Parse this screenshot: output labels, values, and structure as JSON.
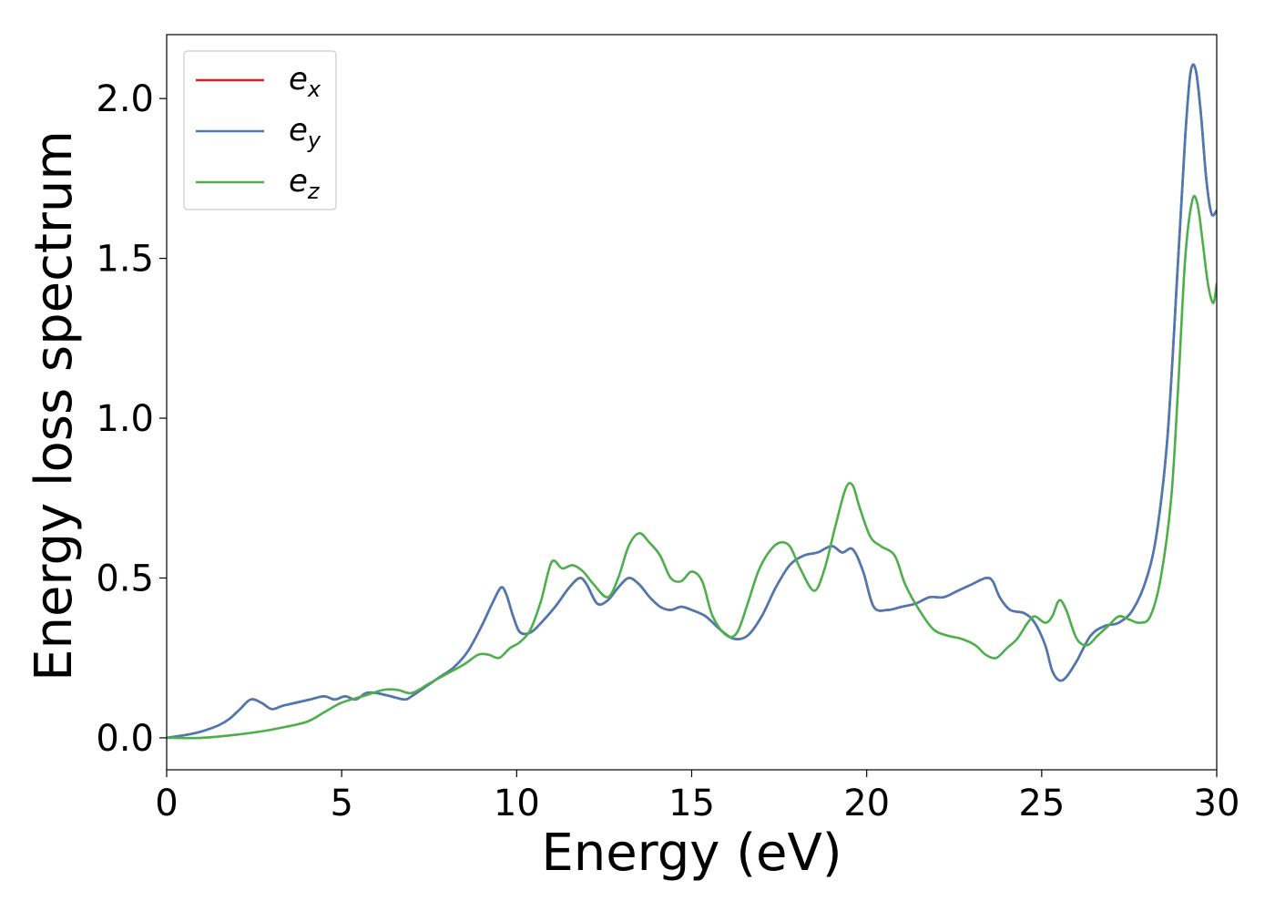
{
  "chart_data": {
    "type": "line",
    "xlabel": "Energy (eV)",
    "ylabel": "Energy loss spectrum",
    "xlim": [
      0,
      30
    ],
    "ylim": [
      -0.1,
      2.2
    ],
    "xticks": [
      0,
      5,
      10,
      15,
      20,
      25,
      30
    ],
    "xtick_labels": [
      "0",
      "5",
      "10",
      "15",
      "20",
      "25",
      "30"
    ],
    "yticks": [
      0.0,
      0.5,
      1.0,
      1.5,
      2.0
    ],
    "ytick_labels": [
      "0.0",
      "0.5",
      "1.0",
      "1.5",
      "2.0"
    ],
    "grid": false,
    "legend_position": "top-left",
    "series": [
      {
        "name": "e_x",
        "label_base": "e",
        "label_sub": "x",
        "color": "#e41a1c",
        "x": [
          0,
          0.6,
          1,
          1.5,
          1.8,
          2.1,
          2.4,
          2.7,
          3.0,
          3.3,
          3.7,
          4.1,
          4.5,
          4.8,
          5.1,
          5.4,
          5.7,
          6.0,
          6.4,
          6.8,
          7.0,
          7.4,
          7.8,
          8.2,
          8.6,
          9.0,
          9.3,
          9.55,
          9.7,
          9.9,
          10.1,
          10.4,
          10.7,
          11.1,
          11.5,
          11.8,
          12.0,
          12.3,
          12.6,
          12.9,
          13.2,
          13.5,
          13.8,
          14.1,
          14.4,
          14.7,
          15.0,
          15.4,
          15.8,
          16.2,
          16.6,
          17.0,
          17.4,
          17.8,
          18.2,
          18.6,
          19.0,
          19.3,
          19.6,
          19.9,
          20.2,
          20.6,
          21.0,
          21.4,
          21.8,
          22.2,
          22.6,
          23.0,
          23.4,
          23.6,
          23.8,
          24.1,
          24.5,
          24.8,
          25.1,
          25.3,
          25.5,
          25.7,
          26.0,
          26.4,
          26.8,
          27.2,
          27.6,
          28.0,
          28.3,
          28.6,
          28.9,
          29.1,
          29.25,
          29.4,
          29.55,
          29.7,
          29.85,
          30.0
        ],
        "y": [
          0,
          0.01,
          0.02,
          0.04,
          0.06,
          0.09,
          0.12,
          0.11,
          0.09,
          0.1,
          0.11,
          0.12,
          0.13,
          0.12,
          0.13,
          0.12,
          0.14,
          0.14,
          0.13,
          0.12,
          0.13,
          0.16,
          0.19,
          0.22,
          0.27,
          0.35,
          0.42,
          0.47,
          0.45,
          0.38,
          0.33,
          0.33,
          0.36,
          0.41,
          0.47,
          0.5,
          0.48,
          0.42,
          0.43,
          0.47,
          0.5,
          0.48,
          0.44,
          0.41,
          0.4,
          0.41,
          0.4,
          0.38,
          0.34,
          0.31,
          0.32,
          0.38,
          0.47,
          0.54,
          0.57,
          0.58,
          0.6,
          0.58,
          0.59,
          0.52,
          0.41,
          0.4,
          0.41,
          0.42,
          0.44,
          0.44,
          0.46,
          0.48,
          0.5,
          0.49,
          0.44,
          0.4,
          0.39,
          0.36,
          0.29,
          0.21,
          0.18,
          0.19,
          0.24,
          0.32,
          0.35,
          0.36,
          0.4,
          0.5,
          0.65,
          0.95,
          1.5,
          1.88,
          2.08,
          2.09,
          1.95,
          1.75,
          1.64,
          1.65
        ]
      },
      {
        "name": "e_y",
        "label_base": "e",
        "label_sub": "y",
        "color": "#4a7ab5",
        "x": [
          0,
          0.6,
          1,
          1.5,
          1.8,
          2.1,
          2.4,
          2.7,
          3.0,
          3.3,
          3.7,
          4.1,
          4.5,
          4.8,
          5.1,
          5.4,
          5.7,
          6.0,
          6.4,
          6.8,
          7.0,
          7.4,
          7.8,
          8.2,
          8.6,
          9.0,
          9.3,
          9.55,
          9.7,
          9.9,
          10.1,
          10.4,
          10.7,
          11.1,
          11.5,
          11.8,
          12.0,
          12.3,
          12.6,
          12.9,
          13.2,
          13.5,
          13.8,
          14.1,
          14.4,
          14.7,
          15.0,
          15.4,
          15.8,
          16.2,
          16.6,
          17.0,
          17.4,
          17.8,
          18.2,
          18.6,
          19.0,
          19.3,
          19.6,
          19.9,
          20.2,
          20.6,
          21.0,
          21.4,
          21.8,
          22.2,
          22.6,
          23.0,
          23.4,
          23.6,
          23.8,
          24.1,
          24.5,
          24.8,
          25.1,
          25.3,
          25.5,
          25.7,
          26.0,
          26.4,
          26.8,
          27.2,
          27.6,
          28.0,
          28.3,
          28.6,
          28.9,
          29.1,
          29.25,
          29.4,
          29.55,
          29.7,
          29.85,
          30.0
        ],
        "y": [
          0,
          0.01,
          0.02,
          0.04,
          0.06,
          0.09,
          0.12,
          0.11,
          0.09,
          0.1,
          0.11,
          0.12,
          0.13,
          0.12,
          0.13,
          0.12,
          0.14,
          0.14,
          0.13,
          0.12,
          0.13,
          0.16,
          0.19,
          0.22,
          0.27,
          0.35,
          0.42,
          0.47,
          0.45,
          0.38,
          0.33,
          0.33,
          0.36,
          0.41,
          0.47,
          0.5,
          0.48,
          0.42,
          0.43,
          0.47,
          0.5,
          0.48,
          0.44,
          0.41,
          0.4,
          0.41,
          0.4,
          0.38,
          0.34,
          0.31,
          0.32,
          0.38,
          0.47,
          0.54,
          0.57,
          0.58,
          0.6,
          0.58,
          0.59,
          0.52,
          0.41,
          0.4,
          0.41,
          0.42,
          0.44,
          0.44,
          0.46,
          0.48,
          0.5,
          0.49,
          0.44,
          0.4,
          0.39,
          0.36,
          0.29,
          0.21,
          0.18,
          0.19,
          0.24,
          0.32,
          0.35,
          0.36,
          0.4,
          0.5,
          0.65,
          0.95,
          1.5,
          1.88,
          2.08,
          2.09,
          1.95,
          1.75,
          1.64,
          1.65
        ]
      },
      {
        "name": "e_z",
        "label_base": "e",
        "label_sub": "z",
        "color": "#4daf4a",
        "x": [
          0,
          1,
          2,
          2.7,
          3.2,
          4.0,
          4.5,
          5.0,
          5.6,
          6.2,
          6.6,
          7.0,
          7.5,
          8.0,
          8.5,
          8.9,
          9.2,
          9.5,
          9.8,
          10.1,
          10.4,
          10.7,
          11.0,
          11.3,
          11.6,
          11.9,
          12.2,
          12.6,
          12.9,
          13.2,
          13.5,
          13.8,
          14.1,
          14.4,
          14.7,
          15.0,
          15.3,
          15.6,
          16.0,
          16.3,
          16.6,
          16.9,
          17.2,
          17.5,
          17.8,
          18.1,
          18.5,
          18.8,
          19.1,
          19.4,
          19.6,
          19.8,
          20.1,
          20.4,
          20.8,
          21.1,
          21.5,
          21.9,
          22.3,
          22.7,
          23.1,
          23.4,
          23.7,
          24.0,
          24.3,
          24.6,
          24.8,
          25.1,
          25.3,
          25.5,
          25.7,
          26.0,
          26.3,
          26.6,
          26.9,
          27.2,
          27.5,
          27.8,
          28.1,
          28.4,
          28.7,
          28.9,
          29.1,
          29.3,
          29.45,
          29.6,
          29.75,
          29.9,
          30.0
        ],
        "y": [
          0,
          0.0,
          0.01,
          0.02,
          0.03,
          0.05,
          0.08,
          0.11,
          0.13,
          0.15,
          0.15,
          0.14,
          0.17,
          0.2,
          0.23,
          0.26,
          0.26,
          0.25,
          0.28,
          0.3,
          0.34,
          0.43,
          0.55,
          0.53,
          0.54,
          0.52,
          0.48,
          0.44,
          0.5,
          0.6,
          0.64,
          0.61,
          0.57,
          0.5,
          0.49,
          0.52,
          0.49,
          0.38,
          0.32,
          0.33,
          0.42,
          0.52,
          0.58,
          0.61,
          0.6,
          0.53,
          0.46,
          0.53,
          0.66,
          0.78,
          0.79,
          0.72,
          0.63,
          0.6,
          0.57,
          0.48,
          0.4,
          0.34,
          0.32,
          0.31,
          0.29,
          0.26,
          0.25,
          0.28,
          0.31,
          0.36,
          0.38,
          0.36,
          0.38,
          0.43,
          0.4,
          0.31,
          0.29,
          0.32,
          0.35,
          0.38,
          0.37,
          0.36,
          0.38,
          0.5,
          0.75,
          1.1,
          1.5,
          1.68,
          1.67,
          1.55,
          1.42,
          1.36,
          1.42
        ]
      }
    ]
  }
}
